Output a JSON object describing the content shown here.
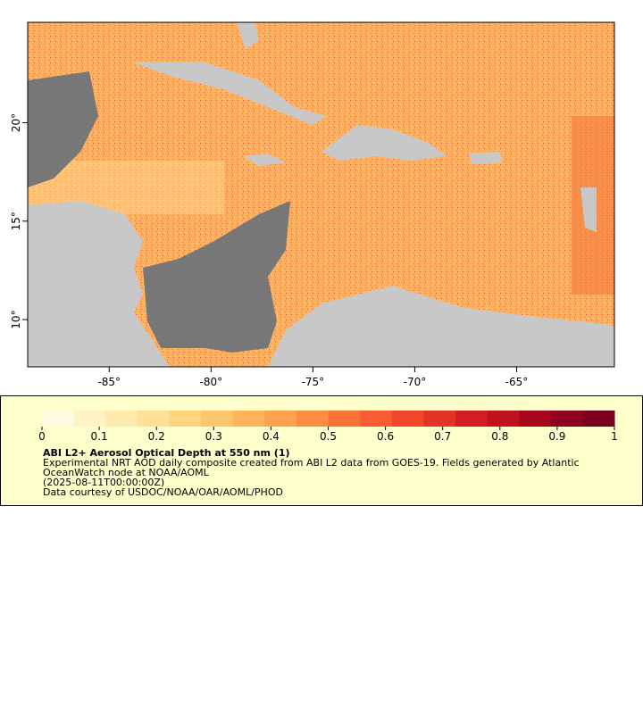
{
  "map": {
    "xlim": [
      -89,
      -60.2
    ],
    "ylim": [
      7.6,
      25.1
    ],
    "xticks": [
      {
        "value": -85,
        "label": "-85°"
      },
      {
        "value": -80,
        "label": "-80°"
      },
      {
        "value": -75,
        "label": "-75°"
      },
      {
        "value": -70,
        "label": "-70°"
      },
      {
        "value": -65,
        "label": "-65°"
      }
    ],
    "yticks": [
      {
        "value": 10,
        "label": "10°"
      },
      {
        "value": 15,
        "label": "15°"
      },
      {
        "value": 20,
        "label": "20°"
      }
    ]
  },
  "colorbar": {
    "lim": [
      0,
      1
    ],
    "ticks": [
      0,
      0.1,
      0.2,
      0.3,
      0.4,
      0.5,
      0.6,
      0.7,
      0.8,
      0.9,
      1
    ],
    "colors": [
      "#fffbe0",
      "#fff3c6",
      "#ffeaad",
      "#fee096",
      "#fed47f",
      "#fec66c",
      "#feb45b",
      "#fea24f",
      "#fd8c44",
      "#fc7339",
      "#f95c32",
      "#f0472b",
      "#e33226",
      "#d31f22",
      "#c0111f",
      "#a8061f",
      "#8f0220",
      "#7a0021"
    ]
  },
  "legend": {
    "title": "ABI L2+ Aerosol Optical Depth at 550 nm (1)",
    "lines": [
      "Experimental NRT AOD daily composite created from ABI L2 data from GOES-19. Fields generated by Atlantic",
      "OceanWatch node at NOAA/AOML",
      "(2025-08-11T00:00:00Z)",
      "Data courtesy of USDOC/NOAA/OAR/AOML/PHOD"
    ]
  }
}
